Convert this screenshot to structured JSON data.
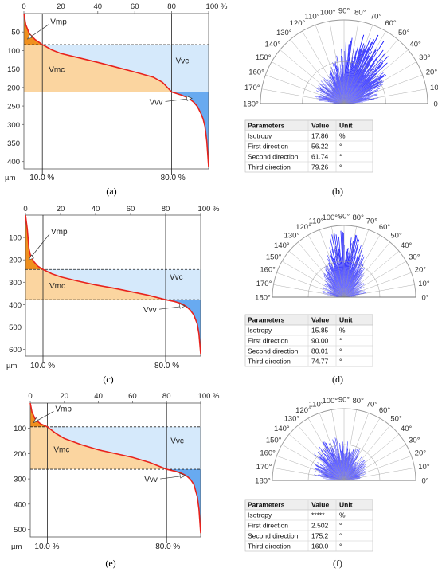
{
  "chart_data": [
    {
      "type": "area",
      "panel": "(a)",
      "x_ticks": [
        "0",
        "20",
        "40",
        "60",
        "80",
        "100 %"
      ],
      "y_ticks": [
        "50",
        "100",
        "150",
        "200",
        "250",
        "300",
        "350",
        "400"
      ],
      "y_unit": "µm",
      "ylim": [
        0,
        420
      ],
      "mr1_label": "10.0 %",
      "mr2_label": "80.0 %",
      "mr1": 10,
      "mr2": 80,
      "h_top": 84,
      "h_bot": 212,
      "curve_x": [
        0,
        1,
        3,
        6,
        10,
        15,
        20,
        30,
        40,
        50,
        60,
        70,
        75,
        80,
        85,
        88,
        90,
        92,
        94,
        96,
        97,
        98,
        99,
        100
      ],
      "curve_y": [
        0,
        30,
        55,
        70,
        84,
        98,
        108,
        120,
        132,
        145,
        158,
        172,
        186,
        212,
        220,
        226,
        232,
        240,
        252,
        272,
        285,
        305,
        345,
        415
      ],
      "regions": [
        "Vmp",
        "Vmc",
        "Vvc",
        "Vvv"
      ]
    },
    {
      "type": "area",
      "panel": "(c)",
      "x_ticks": [
        "0",
        "20",
        "40",
        "60",
        "80",
        "100 %"
      ],
      "y_ticks": [
        "100",
        "200",
        "300",
        "400",
        "500",
        "600"
      ],
      "y_unit": "µm",
      "ylim": [
        0,
        630
      ],
      "mr1_label": "10.0 %",
      "mr2_label": "80.0 %",
      "mr1": 10,
      "mr2": 80,
      "h_top": 243,
      "h_bot": 378,
      "curve_x": [
        0,
        1,
        2,
        3,
        5,
        7,
        10,
        15,
        20,
        30,
        40,
        50,
        60,
        70,
        80,
        85,
        88,
        90,
        92,
        94,
        96,
        98,
        99,
        100
      ],
      "curve_y": [
        0,
        60,
        150,
        185,
        210,
        228,
        243,
        262,
        276,
        295,
        312,
        326,
        342,
        358,
        378,
        386,
        393,
        400,
        410,
        424,
        445,
        485,
        530,
        620
      ],
      "regions": [
        "Vmp",
        "Vmc",
        "Vvc",
        "Vvv"
      ]
    },
    {
      "type": "area",
      "panel": "(e)",
      "x_ticks": [
        "0",
        "20",
        "40",
        "60",
        "80",
        "100 %"
      ],
      "y_ticks": [
        "100",
        "200",
        "300",
        "400",
        "500"
      ],
      "y_unit": "µm",
      "ylim": [
        0,
        530
      ],
      "mr1_label": "10.0 %",
      "mr2_label": "80.0 %",
      "mr1": 10,
      "mr2": 80,
      "h_top": 94,
      "h_bot": 262,
      "curve_x": [
        0,
        1,
        3,
        6,
        10,
        15,
        20,
        30,
        40,
        50,
        60,
        70,
        80,
        85,
        88,
        90,
        92,
        94,
        96,
        98,
        99,
        100
      ],
      "curve_y": [
        0,
        35,
        65,
        82,
        94,
        120,
        140,
        165,
        185,
        200,
        215,
        235,
        262,
        270,
        276,
        282,
        290,
        302,
        322,
        370,
        420,
        515
      ],
      "regions": [
        "Vmp",
        "Vmc",
        "Vvc",
        "Vvv"
      ]
    },
    {
      "type": "polar-bar",
      "panel": "(b)",
      "angle_labels": [
        "0°",
        "10°",
        "20°",
        "30°",
        "40°",
        "50°",
        "60°",
        "70°",
        "80°",
        "90°",
        "100°",
        "110°",
        "120°",
        "130°",
        "140°",
        "150°",
        "160°",
        "170°",
        "180°"
      ],
      "lobe_center_deg": 65,
      "lobe_width_deg": 26,
      "peak": 0.92,
      "base": 0.38,
      "seed": 11
    },
    {
      "type": "polar-bar",
      "panel": "(d)",
      "angle_labels": [
        "0°",
        "10°",
        "20°",
        "30°",
        "40°",
        "50°",
        "60°",
        "70°",
        "80°",
        "90°",
        "100°",
        "110°",
        "120°",
        "130°",
        "140°",
        "150°",
        "160°",
        "170°",
        "180°"
      ],
      "lobe_center_deg": 90,
      "lobe_width_deg": 22,
      "peak": 0.98,
      "base": 0.32,
      "seed": 29
    },
    {
      "type": "polar-bar",
      "panel": "(f)",
      "angle_labels": [
        "0°",
        "10°",
        "20°",
        "30°",
        "40°",
        "50°",
        "60°",
        "70°",
        "80°",
        "90°",
        "100°",
        "110°",
        "120°",
        "130°",
        "140°",
        "150°",
        "160°",
        "170°",
        "180°"
      ],
      "lobe_center_deg": 110,
      "lobe_width_deg": 45,
      "peak": 0.62,
      "base": 0.3,
      "seed": 47
    },
    {
      "type": "table",
      "panel": "(b)",
      "headers": [
        "Parameters",
        "Value",
        "Unit"
      ],
      "rows": [
        [
          "Isotropy",
          "17.86",
          "%"
        ],
        [
          "First direction",
          "56.22",
          "°"
        ],
        [
          "Second direction",
          "61.74",
          "°"
        ],
        [
          "Third direction",
          "79.26",
          "°"
        ]
      ]
    },
    {
      "type": "table",
      "panel": "(d)",
      "headers": [
        "Parameters",
        "Value",
        "Unit"
      ],
      "rows": [
        [
          "Isotropy",
          "15.85",
          "%"
        ],
        [
          "First direction",
          "90.00",
          "°"
        ],
        [
          "Second direction",
          "80.01",
          "°"
        ],
        [
          "Third direction",
          "74.77",
          "°"
        ]
      ]
    },
    {
      "type": "table",
      "panel": "(f)",
      "headers": [
        "Parameters",
        "Value",
        "Unit"
      ],
      "rows": [
        [
          "Isotropy",
          "*****",
          "%"
        ],
        [
          "First direction",
          "2.502",
          "°"
        ],
        [
          "Second direction",
          "175.2",
          "°"
        ],
        [
          "Third direction",
          "160.0",
          "°"
        ]
      ]
    }
  ],
  "colors": {
    "curve": "#e8221c",
    "vmp": "#f0901e",
    "vmc": "#fbd5a0",
    "vvc": "#d5e9fb",
    "vvv": "#68aaf0",
    "rose": "#1616ff",
    "grid": "#9a9a9a"
  }
}
